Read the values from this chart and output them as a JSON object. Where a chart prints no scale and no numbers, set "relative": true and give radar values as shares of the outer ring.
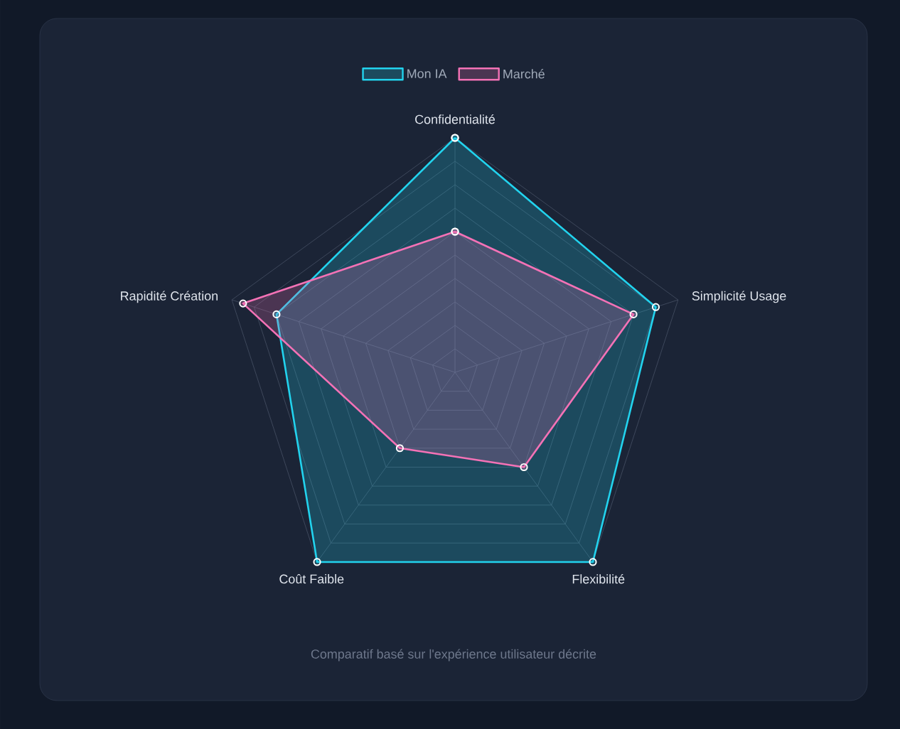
{
  "chart_data": {
    "type": "radar",
    "relative": true,
    "grid": true,
    "legend": "top",
    "marker": "circle",
    "categories": [
      "Confidentialité",
      "Simplicité Usage",
      "Flexibilité",
      "Coût Faible",
      "Rapidité Création"
    ],
    "series": [
      {
        "name": "Mon IA",
        "color": "#22d3ee",
        "values": [
          1,
          0.9,
          1,
          1,
          0.8
        ]
      },
      {
        "name": "Marché",
        "color": "#f472b6",
        "values": [
          0.6,
          0.8,
          0.5,
          0.4,
          0.95
        ]
      }
    ],
    "annotations": [
      "Comparatif basé sur l'expérience utilisateur décrite"
    ]
  }
}
